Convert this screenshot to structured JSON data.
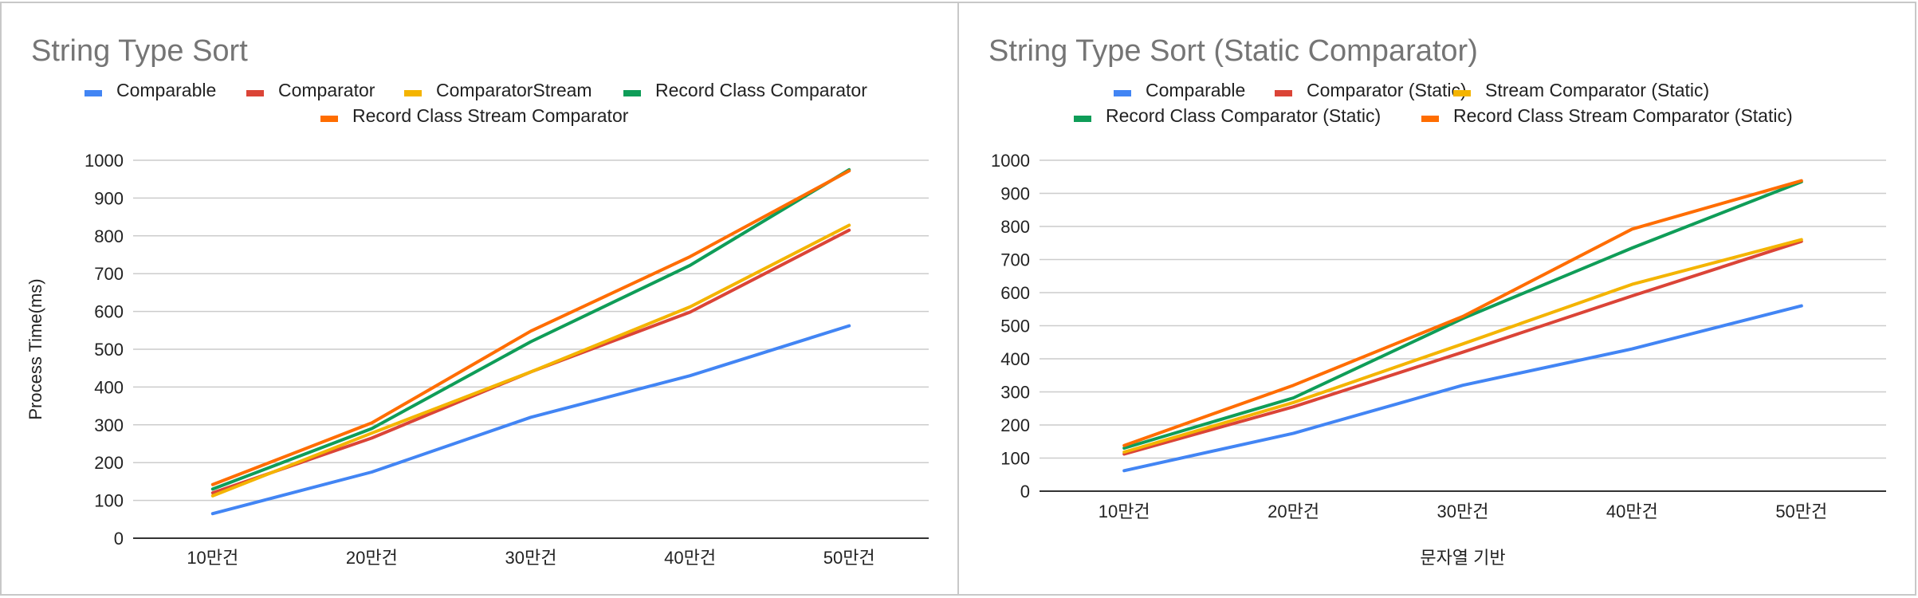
{
  "chart_data": [
    {
      "type": "line",
      "title": "String Type Sort",
      "xlabel": "",
      "ylabel": "Process Time(ms)",
      "categories": [
        "10만건",
        "20만건",
        "30만건",
        "40만건",
        "50만건"
      ],
      "ylim": [
        0,
        1000
      ],
      "yticks": [
        0,
        100,
        200,
        300,
        400,
        500,
        600,
        700,
        800,
        900,
        1000
      ],
      "grid": true,
      "legend": "top",
      "series": [
        {
          "name": "Comparable",
          "color": "#4285f4",
          "values": [
            65,
            175,
            320,
            430,
            562
          ]
        },
        {
          "name": "Comparator",
          "color": "#db4437",
          "values": [
            120,
            265,
            440,
            598,
            815
          ]
        },
        {
          "name": "ComparatorStream",
          "color": "#f4b400",
          "values": [
            112,
            278,
            440,
            612,
            828
          ]
        },
        {
          "name": "Record Class Comparator",
          "color": "#0f9d58",
          "values": [
            130,
            290,
            520,
            722,
            975
          ]
        },
        {
          "name": "Record Class Stream Comparator",
          "color": "#ff6d00",
          "values": [
            142,
            305,
            548,
            745,
            972
          ]
        }
      ]
    },
    {
      "type": "line",
      "title": "String Type Sort (Static Comparator)",
      "xlabel": "문자열 기반",
      "ylabel": "",
      "categories": [
        "10만건",
        "20만건",
        "30만건",
        "40만건",
        "50만건"
      ],
      "ylim": [
        0,
        1000
      ],
      "yticks": [
        0,
        100,
        200,
        300,
        400,
        500,
        600,
        700,
        800,
        900,
        1000
      ],
      "grid": true,
      "legend": "top",
      "series": [
        {
          "name": "Comparable",
          "color": "#4285f4",
          "values": [
            62,
            175,
            320,
            430,
            560
          ]
        },
        {
          "name": "Comparator (Static)",
          "color": "#db4437",
          "values": [
            112,
            255,
            420,
            590,
            755
          ]
        },
        {
          "name": "Stream Comparator (Static)",
          "color": "#f4b400",
          "values": [
            118,
            268,
            445,
            625,
            760
          ]
        },
        {
          "name": "Record Class Comparator (Static)",
          "color": "#0f9d58",
          "values": [
            130,
            282,
            522,
            735,
            935
          ]
        },
        {
          "name": "Record Class Stream Comparator (Static)",
          "color": "#ff6d00",
          "values": [
            138,
            320,
            528,
            792,
            938
          ]
        }
      ]
    }
  ]
}
